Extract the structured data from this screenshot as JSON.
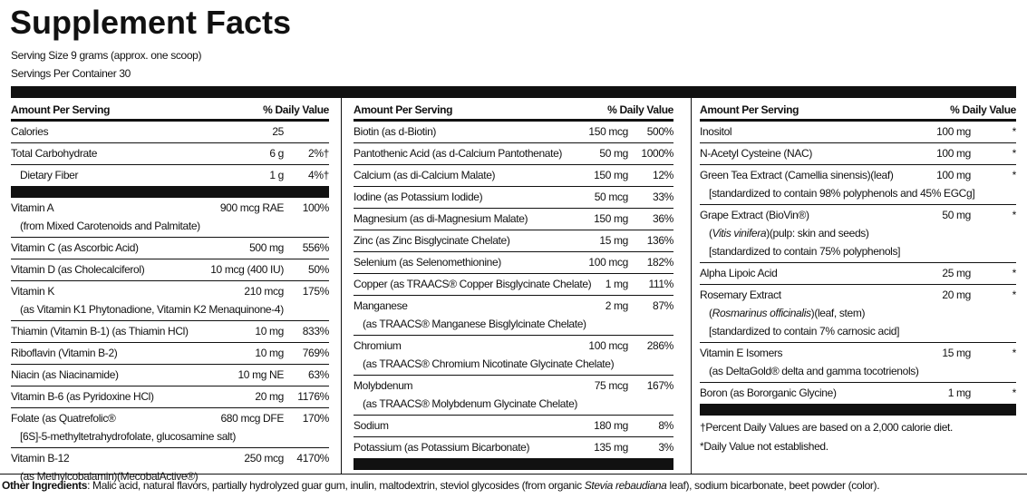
{
  "header": {
    "title": "Supplement Facts",
    "serving_size": "Serving Size  9 grams (approx. one scoop)",
    "servings_per_container": "Servings Per Container 30"
  },
  "columns": [
    {
      "heading_amount": "Amount Per Serving",
      "heading_dv": "% Daily Value",
      "groups": [
        [
          {
            "name": "Calories",
            "amount": "25"
          },
          {
            "name": "Total Carbohydrate",
            "amount": "6 g",
            "dv": "2%†"
          },
          {
            "name": "Dietary Fiber",
            "amount": "1 g",
            "dv": "4%†",
            "indent": true
          }
        ],
        [
          {
            "name": "Vitamin A",
            "amount": "900 mcg RAE",
            "dv": "100%",
            "sub": [
              [
                "(from Mixed Carotenoids and Palmitate)"
              ]
            ]
          },
          {
            "name": "Vitamin C (as Ascorbic Acid)",
            "amount": "500 mg",
            "dv": "556%"
          },
          {
            "name": "Vitamin D (as Cholecalciferol)",
            "amount": "10 mcg (400 IU)",
            "dv": "50%"
          },
          {
            "name": "Vitamin K",
            "amount": "210 mcg",
            "dv": "175%",
            "sub": [
              [
                "(as Vitamin K1 Phytonadione, Vitamin K2 Menaquinone-4)"
              ]
            ]
          },
          {
            "name": "Thiamin (Vitamin B-1) (as Thiamin HCl)",
            "amount": "10 mg",
            "dv": "833%"
          },
          {
            "name": "Riboflavin (Vitamin B-2)",
            "amount": "10 mg",
            "dv": "769%"
          },
          {
            "name": "Niacin (as Niacinamide)",
            "amount": "10 mg NE",
            "dv": "63%"
          },
          {
            "name": "Vitamin B-6 (as Pyridoxine HCl)",
            "amount": "20 mg",
            "dv": "1176%"
          },
          {
            "name": "Folate (as Quatrefolic®",
            "amount": "680 mcg DFE",
            "dv": "170%",
            "sub": [
              [
                "[6S]-5-methyltetrahydrofolate, glucosamine salt)"
              ]
            ]
          },
          {
            "name": "Vitamin B-12",
            "amount": "250 mcg",
            "dv": "4170%",
            "sub": [
              [
                "(as Methylcobalamin)(MecobalActive®)"
              ]
            ]
          }
        ]
      ]
    },
    {
      "heading_amount": "Amount Per Serving",
      "heading_dv": "% Daily Value",
      "groups": [
        [
          {
            "name": "Biotin (as d-Biotin)",
            "amount": "150 mcg",
            "dv": "500%"
          },
          {
            "name": "Pantothenic Acid (as d-Calcium Pantothenate)",
            "amount": "50 mg",
            "dv": "1000%"
          },
          {
            "name": "Calcium (as di-Calcium Malate)",
            "amount": "150 mg",
            "dv": "12%"
          },
          {
            "name": "Iodine (as Potassium Iodide)",
            "amount": "50 mcg",
            "dv": "33%"
          },
          {
            "name": "Magnesium (as di-Magnesium Malate)",
            "amount": "150 mg",
            "dv": "36%"
          },
          {
            "name": "Zinc (as Zinc Bisglycinate Chelate)",
            "amount": "15 mg",
            "dv": "136%"
          },
          {
            "name": "Selenium (as Selenomethionine)",
            "amount": "100 mcg",
            "dv": "182%"
          },
          {
            "name": "Copper (as TRAACS® Copper Bisglycinate Chelate)",
            "amount": "1 mg",
            "dv": "111%"
          },
          {
            "name": "Manganese",
            "amount": "2 mg",
            "dv": "87%",
            "sub": [
              [
                "(as TRAACS® Manganese Bisglylcinate Chelate)"
              ]
            ]
          },
          {
            "name": "Chromium",
            "amount": "100 mcg",
            "dv": "286%",
            "sub": [
              [
                "(as TRAACS® Chromium Nicotinate Glycinate Chelate)"
              ]
            ]
          },
          {
            "name": "Molybdenum",
            "amount": "75 mcg",
            "dv": "167%",
            "sub": [
              [
                "(as TRAACS® Molybdenum Glycinate Chelate)"
              ]
            ]
          },
          {
            "name": "Sodium",
            "amount": "180 mg",
            "dv": "8%"
          },
          {
            "name": "Potassium (as Potassium Bicarbonate)",
            "amount": "135 mg",
            "dv": "3%"
          }
        ]
      ]
    },
    {
      "heading_amount": "Amount Per Serving",
      "heading_dv": "% Daily Value",
      "groups": [
        [
          {
            "name": "Inositol",
            "amount": "100 mg",
            "dv": "*"
          },
          {
            "name": "N-Acetyl Cysteine (NAC)",
            "amount": "100 mg",
            "dv": "*"
          },
          {
            "name": "Green Tea Extract (Camellia sinensis)(leaf)",
            "amount": "100 mg",
            "dv": "*",
            "sub": [
              [
                "[standardized to contain 98% polyphenols and 45% EGCg]"
              ]
            ]
          },
          {
            "name": "Grape Extract (BioVin®)",
            "amount": "50 mg",
            "dv": "*",
            "sub": [
              [
                "(",
                {
                  "text": "Vitis vinifera",
                  "italic": true
                },
                ")(pulp: skin and seeds)"
              ],
              [
                "[standardized to contain 75% polyphenols]"
              ]
            ]
          },
          {
            "name": "Alpha Lipoic Acid",
            "amount": "25 mg",
            "dv": "*"
          },
          {
            "name": "Rosemary Extract",
            "amount": "20 mg",
            "dv": "*",
            "sub": [
              [
                "(",
                {
                  "text": "Rosmarinus officinalis",
                  "italic": true
                },
                ")(leaf, stem)"
              ],
              [
                "[standardized to contain 7% carnosic acid]"
              ]
            ]
          },
          {
            "name": "Vitamin E Isomers",
            "amount": "15 mg",
            "dv": "*",
            "sub": [
              [
                "(as DeltaGold® delta and gamma tocotrienols)"
              ]
            ]
          },
          {
            "name": "Boron (as Bororganic Glycine)",
            "amount": "1 mg",
            "dv": "*"
          }
        ]
      ],
      "footnotes": [
        "†Percent Daily Values are based on a 2,000 calorie diet.",
        "*Daily Value not established."
      ]
    }
  ],
  "other_ingredients": {
    "label": "Other Ingredients",
    "text": [
      ": Malic acid, natural flavors, partially hydrolyzed guar gum, inulin, maltodextrin, steviol glycosides (from organic ",
      {
        "text": "Stevia rebaudiana",
        "italic": true
      },
      " leaf), sodium bicarbonate, beet powder (color)."
    ]
  }
}
